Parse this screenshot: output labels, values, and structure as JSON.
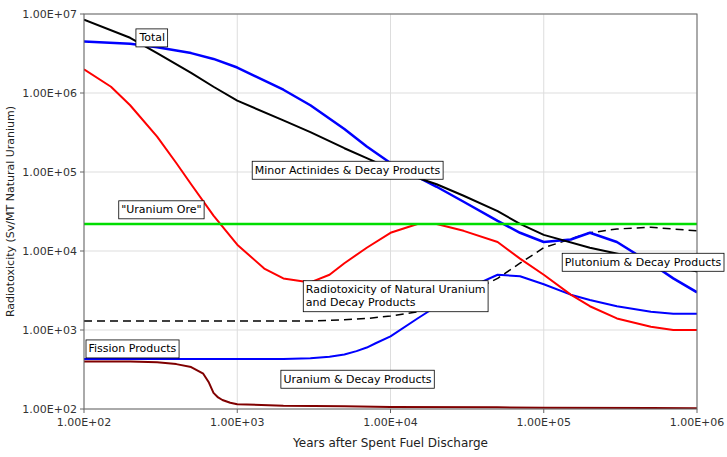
{
  "chart_data": {
    "type": "line",
    "log": true,
    "grid": true,
    "x_label": "Years after Spent Fuel Discharge",
    "y_label": "Radiotoxicity (Sv/MT Natural Uranium)",
    "xlim": [
      100,
      1000000
    ],
    "ylim": [
      100,
      10000000
    ],
    "xticks": [
      {
        "value": 100,
        "label": "1.00E+02"
      },
      {
        "value": 1000,
        "label": "1.00E+03"
      },
      {
        "value": 10000,
        "label": "1.00E+04"
      },
      {
        "value": 100000,
        "label": "1.00E+05"
      },
      {
        "value": 1000000,
        "label": "1.00E+06"
      }
    ],
    "yticks": [
      {
        "value": 100,
        "label": "1.00E+02"
      },
      {
        "value": 1000,
        "label": "1.00E+03"
      },
      {
        "value": 10000,
        "label": "1.00E+04"
      },
      {
        "value": 100000,
        "label": "1.00E+05"
      },
      {
        "value": 1000000,
        "label": "1.00E+06"
      },
      {
        "value": 10000000,
        "label": "1.00E+07"
      }
    ],
    "series": [
      {
        "color": "#0000ff",
        "line_style": "solid",
        "x": [
          100,
          200,
          500,
          1000,
          2000,
          3000,
          4000,
          5000,
          6000,
          7000,
          8000,
          10000,
          15000,
          20000,
          30000,
          50000,
          70000,
          100000,
          150000,
          200000,
          300000,
          500000,
          700000,
          1000000
        ],
        "values": [
          430,
          430,
          430,
          430,
          430,
          440,
          460,
          490,
          540,
          600,
          680,
          830,
          1400,
          2000,
          3200,
          5000,
          4800,
          3800,
          2800,
          2400,
          2000,
          1700,
          1600,
          1600
        ]
      },
      {
        "color": "#000000",
        "line_style": "dashed",
        "x": [
          100,
          300,
          1000,
          3000,
          5000,
          7000,
          10000,
          15000,
          20000,
          30000,
          50000,
          70000,
          100000,
          200000,
          300000,
          500000,
          700000,
          1000000
        ],
        "values": [
          1300,
          1300,
          1300,
          1300,
          1350,
          1400,
          1500,
          1700,
          2000,
          2800,
          4500,
          7000,
          11000,
          17000,
          19000,
          20000,
          19000,
          18000
        ]
      },
      {
        "color": "#800000",
        "line_style": "solid",
        "x": [
          100,
          200,
          300,
          400,
          500,
          600,
          650,
          700,
          750,
          800,
          900,
          1000,
          2000,
          5000,
          10000,
          50000,
          100000,
          500000,
          1000000
        ],
        "values": [
          400,
          400,
          390,
          370,
          340,
          280,
          220,
          160,
          140,
          130,
          120,
          115,
          110,
          108,
          106,
          105,
          104,
          103,
          102
        ]
      },
      {
        "color": "#ff0000",
        "line_style": "solid",
        "x": [
          100,
          150,
          200,
          300,
          400,
          500,
          700,
          1000,
          1500,
          2000,
          3000,
          4000,
          5000,
          7000,
          10000,
          15000,
          20000,
          30000,
          50000,
          70000,
          100000,
          150000,
          200000,
          300000,
          500000,
          700000,
          1000000
        ],
        "values": [
          2000000,
          1200000,
          700000,
          280000,
          130000,
          70000,
          28000,
          12000,
          6000,
          4500,
          4000,
          5000,
          7000,
          11000,
          17000,
          22000,
          22000,
          18000,
          13000,
          8000,
          5000,
          2800,
          2000,
          1400,
          1100,
          1000,
          1000
        ]
      },
      {
        "color": "#0000ff",
        "line_style": "solid",
        "x": [
          100,
          200,
          300,
          500,
          700,
          1000,
          2000,
          3000,
          5000,
          7000,
          10000,
          20000,
          30000,
          50000,
          70000,
          100000,
          150000,
          200000,
          300000,
          500000,
          700000,
          1000000
        ],
        "values": [
          4500000,
          4200000,
          3800000,
          3200000,
          2700000,
          2100000,
          1100000,
          700000,
          350000,
          210000,
          130000,
          65000,
          42000,
          24000,
          17000,
          13000,
          14000,
          17000,
          13000,
          7000,
          4500,
          3000
        ]
      },
      {
        "color": "#000000",
        "line_style": "solid",
        "x": [
          100,
          200,
          300,
          500,
          700,
          1000,
          2000,
          3000,
          5000,
          7000,
          10000,
          20000,
          30000,
          50000,
          70000,
          100000,
          200000,
          500000,
          1000000
        ],
        "values": [
          8500000,
          5000000,
          3200000,
          1800000,
          1200000,
          800000,
          450000,
          320000,
          200000,
          150000,
          110000,
          70000,
          50000,
          32000,
          22000,
          16000,
          11000,
          7500,
          5500
        ]
      }
    ],
    "reference_line": {
      "value": 22000,
      "color": "#00dd00"
    },
    "annotations": [
      {
        "text": "Total",
        "x": 230,
        "y": 4500000
      },
      {
        "text": "Minor Actinides & Decay Products",
        "x": 1300,
        "y": 95000
      },
      {
        "text": "\"Uranium Ore\"",
        "x": 175,
        "y": 30000
      },
      {
        "text": "Fission Products",
        "x": 107,
        "y": 520
      },
      {
        "text": "Radiotoxicity of Natural Uranium\nand Decay Products",
        "x": 2800,
        "y": 2000
      },
      {
        "text": "Uranium & Decay Products",
        "x": 2000,
        "y": 215
      },
      {
        "text": "Plutonium & Decay Products",
        "x": 185000,
        "y": 6500
      }
    ]
  }
}
